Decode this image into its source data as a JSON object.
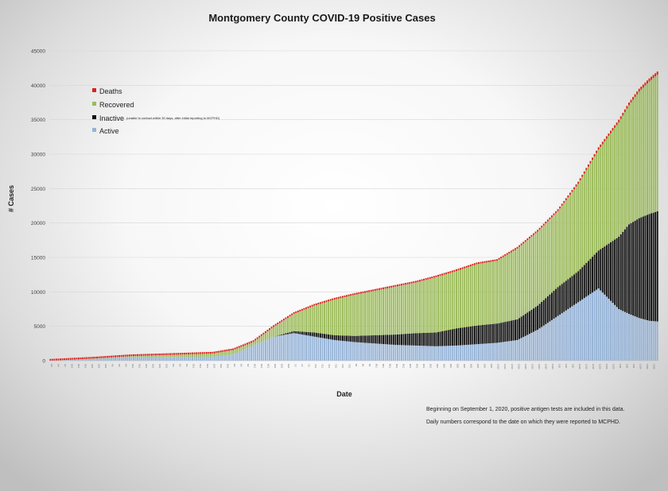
{
  "chart_data": {
    "type": "bar",
    "stacked": true,
    "title": "Montgomery County COVID-19 Positive Cases",
    "xlabel": "Date",
    "ylabel": "# Cases",
    "ylim": [
      0,
      45000
    ],
    "yticks": [
      0,
      5000,
      10000,
      15000,
      20000,
      25000,
      30000,
      35000,
      40000,
      45000
    ],
    "grid": true,
    "legend_position": "top-left",
    "n_days": 300,
    "series": [
      {
        "key": "active",
        "name": "Active",
        "color": "#95b3d7"
      },
      {
        "key": "inactive",
        "name": "Inactive",
        "note": "(unable to contact within 30 days, after initial reporting to MCPHD)",
        "color": "#111111"
      },
      {
        "key": "recovered",
        "name": "Recovered",
        "color": "#9bbb59"
      },
      {
        "key": "deaths",
        "name": "Deaths",
        "color": "#d9231c"
      }
    ],
    "keyframes": {
      "day": [
        0,
        20,
        40,
        60,
        80,
        90,
        100,
        110,
        120,
        130,
        140,
        150,
        160,
        170,
        180,
        190,
        200,
        210,
        220,
        230,
        240,
        250,
        260,
        265,
        270,
        275,
        280,
        285,
        290,
        295,
        299
      ],
      "total": [
        0,
        300,
        700,
        900,
        1100,
        1600,
        2800,
        5000,
        6900,
        8100,
        9000,
        9700,
        10300,
        10900,
        11500,
        12300,
        13200,
        14200,
        14700,
        16500,
        19000,
        22000,
        26000,
        28500,
        31000,
        33000,
        35000,
        37500,
        39500,
        41000,
        42000
      ],
      "active": [
        0,
        250,
        500,
        550,
        600,
        900,
        2200,
        3500,
        4000,
        3500,
        3000,
        2700,
        2500,
        2300,
        2200,
        2100,
        2200,
        2400,
        2600,
        3000,
        4500,
        6500,
        8500,
        9500,
        10500,
        9000,
        7500,
        6800,
        6200,
        5800,
        5700
      ],
      "inactive": [
        0,
        0,
        0,
        0,
        0,
        0,
        0,
        0,
        300,
        600,
        700,
        900,
        1200,
        1500,
        1800,
        2000,
        2500,
        2700,
        2800,
        3000,
        3500,
        4200,
        4500,
        5000,
        5500,
        8000,
        10500,
        13000,
        14500,
        15500,
        16000
      ],
      "deaths": [
        0,
        10,
        30,
        50,
        60,
        70,
        80,
        90,
        100,
        110,
        120,
        130,
        140,
        150,
        160,
        170,
        180,
        190,
        200,
        220,
        250,
        280,
        310,
        330,
        350,
        370,
        390,
        410,
        430,
        450,
        460
      ]
    },
    "x_tick_labels": [
      "3/4",
      "3/14",
      "3/24",
      "4/3",
      "4/13",
      "4/23",
      "5/3",
      "5/13",
      "5/23",
      "6/2",
      "6/12",
      "6/22",
      "7/2",
      "7/12",
      "7/22",
      "8/1",
      "8/11",
      "8/21",
      "8/31",
      "9/10",
      "9/20",
      "9/30",
      "10/10",
      "10/20",
      "10/30",
      "11/9",
      "11/19",
      "11/29",
      "12/9",
      "12/19"
    ]
  },
  "notes": [
    "Beginning on September 1, 2020, positive antigen tests are included in this data.",
    "Daily numbers correspond to the date on which they were reported to MCPHD."
  ]
}
